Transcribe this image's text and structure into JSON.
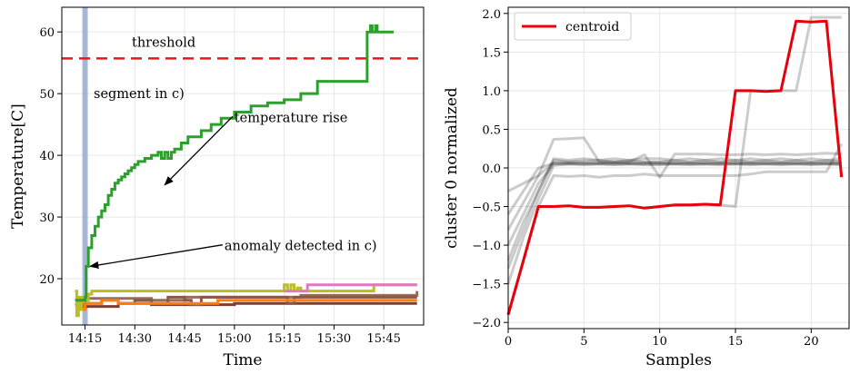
{
  "chart_data": [
    {
      "type": "line",
      "xlabel": "Time",
      "ylabel": "Temperature[C]",
      "x_ticks": [
        "14:15",
        "14:30",
        "14:45",
        "15:00",
        "15:15",
        "15:30",
        "15:45"
      ],
      "x_tick_minutes": [
        0,
        15,
        30,
        45,
        60,
        75,
        90
      ],
      "xlim_minutes": [
        -7,
        102
      ],
      "y_ticks": [
        20,
        30,
        40,
        50,
        60
      ],
      "ylim": [
        12.5,
        64
      ],
      "grid": true,
      "threshold": {
        "value": 55.7,
        "label": "threshold",
        "color": "#e31a1c"
      },
      "highlight_band": {
        "x_minutes": 0,
        "label": "segment in c)",
        "color": "#8da0cb"
      },
      "annotations": [
        {
          "text": "temperature rise",
          "text_at": [
            45,
            46
          ],
          "arrow_to": [
            24,
            35.2
          ]
        },
        {
          "text": "anomaly detected in c)",
          "text_at": [
            42,
            25.2
          ],
          "arrow_to": [
            1.5,
            22
          ]
        }
      ],
      "series": [
        {
          "color": "#2ca02c",
          "points": [
            [
              -3,
              16.5
            ],
            [
              0,
              17
            ],
            [
              0.3,
              22
            ],
            [
              1,
              25
            ],
            [
              2,
              27
            ],
            [
              3,
              28.5
            ],
            [
              4,
              30
            ],
            [
              5,
              31
            ],
            [
              6,
              32
            ],
            [
              7,
              33.5
            ],
            [
              8,
              34.5
            ],
            [
              9,
              35.5
            ],
            [
              10,
              36
            ],
            [
              11,
              36.5
            ],
            [
              12,
              37
            ],
            [
              13,
              37.5
            ],
            [
              14,
              38
            ],
            [
              15,
              38.5
            ],
            [
              16,
              39
            ],
            [
              18,
              39.5
            ],
            [
              20,
              40
            ],
            [
              22,
              40.5
            ],
            [
              23,
              39.5
            ],
            [
              24,
              40.5
            ],
            [
              25,
              39.5
            ],
            [
              26,
              40.5
            ],
            [
              27,
              41
            ],
            [
              29,
              42
            ],
            [
              31,
              43
            ],
            [
              35,
              44
            ],
            [
              38,
              45
            ],
            [
              41,
              46
            ],
            [
              45,
              47
            ],
            [
              50,
              48
            ],
            [
              55,
              48.5
            ],
            [
              60,
              49
            ],
            [
              65,
              50
            ],
            [
              70,
              52
            ],
            [
              85,
              52
            ],
            [
              85,
              60
            ],
            [
              86,
              61
            ],
            [
              86.5,
              60
            ],
            [
              87.5,
              61
            ],
            [
              88,
              60
            ],
            [
              93,
              60
            ]
          ]
        },
        {
          "color": "#e377c2",
          "points": [
            [
              60,
              18
            ],
            [
              65,
              18
            ],
            [
              67,
              19
            ],
            [
              100,
              19
            ]
          ]
        },
        {
          "color": "#bcbd22",
          "points": [
            [
              -3,
              18
            ],
            [
              -2.5,
              14
            ],
            [
              -2,
              17
            ],
            [
              -1.5,
              15
            ],
            [
              -1,
              17
            ],
            [
              0,
              16.5
            ],
            [
              1,
              17.5
            ],
            [
              2,
              18
            ],
            [
              30,
              18
            ],
            [
              60,
              18
            ],
            [
              60,
              19
            ],
            [
              61,
              18
            ],
            [
              62,
              19
            ],
            [
              63,
              18
            ],
            [
              64,
              18.5
            ],
            [
              65,
              18
            ],
            [
              86,
              18
            ],
            [
              87,
              19
            ],
            [
              100,
              19
            ]
          ]
        },
        {
          "color": "#ff7f0e",
          "points": [
            [
              -2,
              15
            ],
            [
              0,
              16
            ],
            [
              5,
              16.5
            ],
            [
              10,
              16
            ],
            [
              30,
              16
            ],
            [
              40,
              16.5
            ],
            [
              60,
              16.5
            ],
            [
              65,
              16.5
            ],
            [
              100,
              16.5
            ]
          ]
        },
        {
          "color": "#8c564b",
          "points": [
            [
              -3,
              15.8
            ],
            [
              0,
              16
            ],
            [
              5,
              16.5
            ],
            [
              10,
              16
            ],
            [
              15,
              16.5
            ],
            [
              20,
              16
            ],
            [
              25,
              17
            ],
            [
              30,
              16.5
            ],
            [
              32,
              15.8
            ],
            [
              35,
              17
            ],
            [
              60,
              17
            ],
            [
              61,
              16
            ],
            [
              63,
              17
            ],
            [
              100,
              17
            ]
          ]
        },
        {
          "color": "#7f3f30",
          "points": [
            [
              -1,
              15.5
            ],
            [
              10,
              16
            ],
            [
              20,
              15.8
            ],
            [
              45,
              16
            ],
            [
              70,
              16
            ],
            [
              100,
              16
            ]
          ]
        },
        {
          "color": "#9b6b55",
          "points": [
            [
              -1,
              16.8
            ],
            [
              20,
              16.5
            ],
            [
              30,
              17
            ],
            [
              60,
              17
            ],
            [
              65,
              17.3
            ],
            [
              100,
              18
            ]
          ]
        }
      ]
    },
    {
      "type": "line",
      "xlabel": "Samples",
      "ylabel": "cluster 0 normalized",
      "x_ticks": [
        0,
        5,
        10,
        15,
        20
      ],
      "xlim": [
        0,
        22.5
      ],
      "y_ticks": [
        -2.0,
        -1.5,
        -1.0,
        -0.5,
        0.0,
        0.5,
        1.0,
        1.5,
        2.0
      ],
      "ylim": [
        -2.08,
        2.08
      ],
      "grid": true,
      "legend": {
        "placement": "top-left",
        "entries": [
          "centroid"
        ]
      },
      "centroid": {
        "name": "centroid",
        "color": "#e8000b",
        "x": [
          0,
          1,
          2,
          3,
          4,
          5,
          6,
          7,
          8,
          9,
          10,
          11,
          12,
          13,
          14,
          15,
          16,
          17,
          18,
          19,
          20,
          21,
          22
        ],
        "y": [
          -1.9,
          -1.2,
          -0.5,
          -0.5,
          -0.49,
          -0.51,
          -0.51,
          -0.5,
          -0.49,
          -0.52,
          -0.5,
          -0.48,
          -0.48,
          -0.47,
          -0.48,
          1.0,
          1.0,
          0.99,
          1.0,
          1.9,
          1.89,
          1.9,
          -0.12
        ]
      },
      "members": {
        "color": "#000000",
        "x": [
          0,
          1,
          2,
          3,
          4,
          5,
          6,
          7,
          8,
          9,
          10,
          11,
          12,
          13,
          14,
          15,
          16,
          17,
          18,
          19,
          20,
          21,
          22
        ],
        "y": [
          [
            -0.6,
            -0.3,
            0.0,
            0.06,
            0.06,
            0.06,
            0.06,
            0.06,
            0.06,
            0.06,
            0.06,
            0.06,
            0.06,
            0.06,
            0.06,
            0.06,
            0.06,
            0.06,
            0.06,
            0.06,
            0.06,
            0.06,
            0.06
          ],
          [
            -0.8,
            -0.45,
            -0.1,
            0.07,
            0.07,
            0.07,
            0.07,
            0.07,
            0.07,
            0.07,
            0.07,
            0.07,
            0.07,
            0.07,
            0.07,
            0.07,
            0.07,
            0.07,
            0.07,
            0.07,
            0.07,
            0.07,
            0.07
          ],
          [
            -1.0,
            -0.6,
            -0.2,
            0.05,
            0.05,
            0.05,
            0.05,
            0.05,
            0.05,
            0.05,
            0.05,
            0.05,
            0.05,
            0.05,
            0.05,
            0.05,
            0.05,
            0.05,
            0.05,
            0.05,
            0.05,
            0.05,
            0.05
          ],
          [
            -1.2,
            -0.7,
            -0.3,
            0.1,
            0.08,
            0.09,
            0.1,
            0.08,
            0.1,
            0.08,
            0.08,
            0.1,
            0.08,
            0.1,
            0.08,
            0.1,
            0.08,
            0.1,
            0.08,
            0.1,
            0.08,
            0.1,
            0.08
          ],
          [
            -1.5,
            -0.9,
            -0.4,
            0.03,
            0.05,
            0.04,
            0.05,
            0.04,
            0.05,
            0.04,
            0.04,
            0.05,
            0.04,
            0.05,
            0.04,
            0.05,
            0.04,
            0.05,
            0.04,
            0.05,
            0.04,
            0.05,
            0.04
          ],
          [
            -0.3,
            -0.2,
            -0.1,
            0.37,
            0.38,
            0.39,
            0.08,
            0.08,
            0.08,
            0.17,
            -0.12,
            0.18,
            0.18,
            0.18,
            0.17,
            0.17,
            0.18,
            0.17,
            0.18,
            0.17,
            0.18,
            0.19,
            0.18
          ],
          [
            -1.3,
            -0.8,
            -0.3,
            0.12,
            0.1,
            0.12,
            0.1,
            0.12,
            0.1,
            0.12,
            0.12,
            0.1,
            0.12,
            0.1,
            0.12,
            0.1,
            0.12,
            0.1,
            0.12,
            0.1,
            0.12,
            0.1,
            0.12
          ],
          [
            -1.9,
            -1.2,
            -0.5,
            -0.1,
            -0.11,
            -0.1,
            -0.12,
            -0.1,
            -0.1,
            -0.08,
            -0.1,
            -0.1,
            -0.1,
            -0.1,
            -0.1,
            -0.1,
            -0.08,
            -0.05,
            -0.05,
            -0.05,
            -0.05,
            -0.05,
            0.31
          ],
          [
            -1.9,
            -1.2,
            -0.5,
            -0.5,
            -0.49,
            -0.51,
            -0.51,
            -0.5,
            -0.49,
            -0.52,
            -0.5,
            -0.48,
            -0.48,
            -0.47,
            -0.48,
            -0.5,
            1.0,
            1.0,
            1.0,
            1.0,
            1.95,
            1.95,
            1.95
          ]
        ]
      }
    }
  ]
}
